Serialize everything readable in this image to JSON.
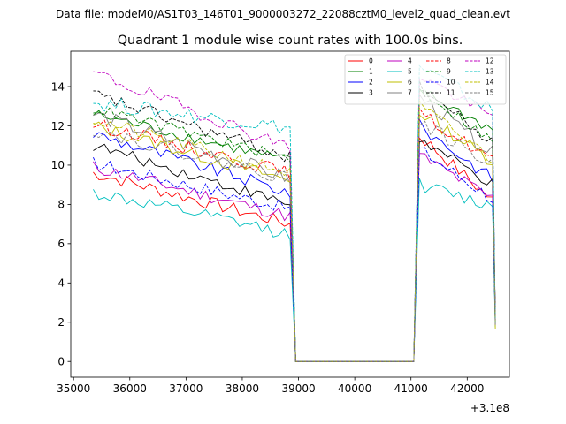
{
  "figure": {
    "suptitle": "Data file: modeM0/AS1T03_146T01_9000003272_22088cztM0_level2_quad_clean.evt",
    "offset_label": "+3.1e8"
  },
  "chart_data": {
    "type": "line",
    "title": "Quadrant 1 module wise count rates with 100.0s bins.",
    "xlabel": "",
    "ylabel": "",
    "x_offset": 310000000,
    "xlim": [
      34950,
      42750
    ],
    "ylim": [
      -0.8,
      15.8
    ],
    "xticks": [
      35000,
      36000,
      37000,
      38000,
      39000,
      40000,
      41000,
      42000
    ],
    "yticks": [
      0,
      2,
      4,
      6,
      8,
      10,
      12,
      14
    ],
    "legend_position": "upper right",
    "x_start": 35350,
    "bin": 100,
    "segment1_end": 38850,
    "gap_start": 38950,
    "gap_end": 41050,
    "segment2_start": 41150,
    "segment2_end": 42450,
    "series": [
      {
        "name": "0",
        "color": "#ff0000",
        "dash": "solid",
        "start": 9.6,
        "end": 7.0,
        "s2start": 11.5,
        "s2end": 8.2,
        "jitter": 0.35
      },
      {
        "name": "1",
        "color": "#008000",
        "dash": "solid",
        "start": 12.6,
        "end": 10.2,
        "s2start": 13.8,
        "s2end": 11.8,
        "jitter": 0.3
      },
      {
        "name": "2",
        "color": "#0000ff",
        "dash": "solid",
        "start": 11.6,
        "end": 8.6,
        "s2start": 12.0,
        "s2end": 9.3,
        "jitter": 0.35
      },
      {
        "name": "3",
        "color": "#000000",
        "dash": "solid",
        "start": 11.0,
        "end": 8.0,
        "s2start": 11.3,
        "s2end": 9.0,
        "jitter": 0.3
      },
      {
        "name": "4",
        "color": "#bf00bf",
        "dash": "solid",
        "start": 9.9,
        "end": 7.4,
        "s2start": 10.5,
        "s2end": 8.3,
        "jitter": 0.35
      },
      {
        "name": "5",
        "color": "#00bfbf",
        "dash": "solid",
        "start": 8.6,
        "end": 6.5,
        "s2start": 9.0,
        "s2end": 7.9,
        "jitter": 0.35
      },
      {
        "name": "6",
        "color": "#bfbf00",
        "dash": "solid",
        "start": 12.0,
        "end": 9.2,
        "s2start": 12.7,
        "s2end": 10.2,
        "jitter": 0.35
      },
      {
        "name": "7",
        "color": "#808080",
        "dash": "solid",
        "start": 12.6,
        "end": 9.3,
        "s2start": 13.5,
        "s2end": 10.6,
        "jitter": 0.4
      },
      {
        "name": "8",
        "color": "#ff0000",
        "dash": "dashed",
        "start": 12.1,
        "end": 9.6,
        "s2start": 12.6,
        "s2end": 10.3,
        "jitter": 0.35
      },
      {
        "name": "9",
        "color": "#008000",
        "dash": "dashed",
        "start": 12.9,
        "end": 10.3,
        "s2start": 13.9,
        "s2end": 11.2,
        "jitter": 0.3
      },
      {
        "name": "10",
        "color": "#0000ff",
        "dash": "dashed",
        "start": 10.1,
        "end": 7.8,
        "s2start": 10.8,
        "s2end": 8.3,
        "jitter": 0.35
      },
      {
        "name": "11",
        "color": "#000000",
        "dash": "dashed",
        "start": 13.6,
        "end": 10.4,
        "s2start": 14.0,
        "s2end": 11.1,
        "jitter": 0.35
      },
      {
        "name": "12",
        "color": "#bf00bf",
        "dash": "dashed",
        "start": 14.7,
        "end": 10.9,
        "s2start": 14.6,
        "s2end": 12.4,
        "jitter": 0.35
      },
      {
        "name": "13",
        "color": "#00bfbf",
        "dash": "dashed",
        "start": 13.2,
        "end": 11.9,
        "s2start": 15.0,
        "s2end": 12.8,
        "jitter": 0.4
      },
      {
        "name": "14",
        "color": "#bfbf00",
        "dash": "dashed",
        "start": 12.3,
        "end": 9.6,
        "s2start": 13.0,
        "s2end": 10.3,
        "jitter": 0.35
      },
      {
        "name": "15",
        "color": "#808080",
        "dash": "dashed",
        "start": 11.8,
        "end": 9.3,
        "s2start": 12.2,
        "s2end": 10.0,
        "jitter": 0.35
      }
    ]
  }
}
